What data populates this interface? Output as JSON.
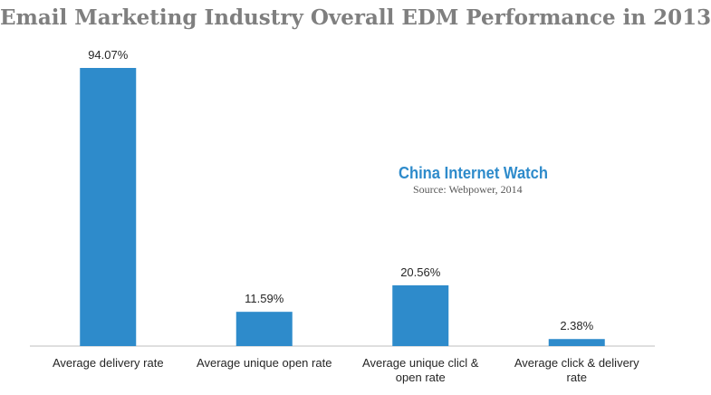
{
  "chart_data": {
    "type": "bar",
    "title": "Email Marketing Industry Overall EDM Performance in 2013",
    "categories": [
      [
        "Average delivery rate"
      ],
      [
        "Average unique open rate"
      ],
      [
        "Average unique clicl &",
        "open rate"
      ],
      [
        "Average click & delivery",
        "rate"
      ]
    ],
    "values": [
      94.07,
      11.59,
      20.56,
      2.38
    ],
    "value_labels": [
      "94.07%",
      "11.59%",
      "20.56%",
      "2.38%"
    ],
    "ylim": [
      0,
      100
    ],
    "grid": false,
    "bar_color": "#2e8bcb"
  },
  "watermark": {
    "brand": "China Internet  Watch",
    "source": "Source: Webpower, 2014"
  },
  "colors": {
    "bar": "#2e8bcb",
    "title": "#7f7f7f",
    "axis": "#bfbfbf"
  }
}
